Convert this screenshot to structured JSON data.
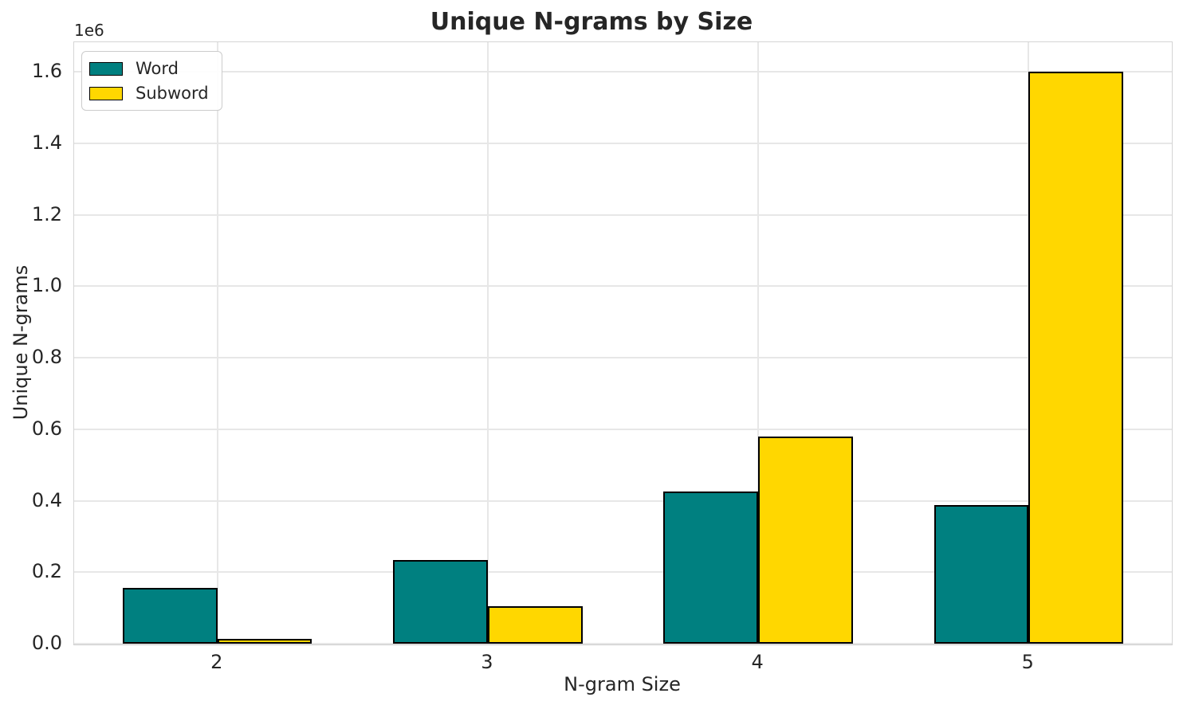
{
  "chart": {
    "title": "Unique N-grams by Size",
    "xlabel": "N-gram Size",
    "ylabel": "Unique N-grams",
    "offset_label": "1e6"
  },
  "chart_data": {
    "type": "bar",
    "title": "Unique N-grams by Size",
    "xlabel": "N-gram Size",
    "ylabel": "Unique N-grams",
    "categories": [
      2,
      3,
      4,
      5
    ],
    "series": [
      {
        "name": "Word",
        "color": "#008080",
        "values": [
          157000,
          235000,
          425000,
          388000
        ]
      },
      {
        "name": "Subword",
        "color": "#FFD700",
        "values": [
          12500,
          105000,
          579000,
          1601000
        ]
      }
    ],
    "bar_edge_color": "#000000",
    "bar_width": 0.35,
    "group_offset": 0.175,
    "xlim": [
      1.47,
      5.53
    ],
    "ylim": [
      0,
      1683000
    ],
    "yticks": [
      0,
      200000,
      400000,
      600000,
      800000,
      1000000,
      1200000,
      1400000,
      1600000
    ],
    "ytick_labels": [
      "0.0",
      "0.2",
      "0.4",
      "0.6",
      "0.8",
      "1.0",
      "1.2",
      "1.4",
      "1.6"
    ],
    "y_offset_text": "1e6",
    "grid": true,
    "legend_position": "upper left"
  },
  "colors": {
    "grid": "#e7e7e7",
    "spine": "#d5d5d5",
    "text": "#262626",
    "background": "#ffffff",
    "accent_teal": "#008080",
    "accent_gold": "#FFD700"
  }
}
